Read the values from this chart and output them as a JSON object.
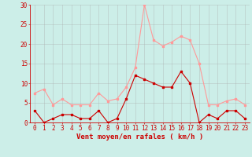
{
  "hours": [
    0,
    1,
    2,
    3,
    4,
    5,
    6,
    7,
    8,
    9,
    10,
    11,
    12,
    13,
    14,
    15,
    16,
    17,
    18,
    19,
    20,
    21,
    22,
    23
  ],
  "wind_avg": [
    3,
    0,
    1,
    2,
    2,
    1,
    1,
    3,
    0,
    1,
    6,
    12,
    11,
    10,
    9,
    9,
    13,
    10,
    0,
    2,
    1,
    3,
    3,
    1
  ],
  "wind_gust": [
    7.5,
    8.5,
    4.5,
    6,
    4.5,
    4.5,
    4.5,
    7.5,
    5.5,
    6,
    9,
    14,
    30,
    21,
    19.5,
    20.5,
    22,
    21,
    15,
    4.5,
    4.5,
    5.5,
    6,
    4.5
  ],
  "color_avg": "#cc0000",
  "color_gust": "#ff9999",
  "bg_color": "#cceee8",
  "grid_color": "#aaaaaa",
  "axis_color": "#cc0000",
  "xlabel": "Vent moyen/en rafales ( km/h )",
  "ylim": [
    0,
    30
  ],
  "yticks": [
    0,
    5,
    10,
    15,
    20,
    25,
    30
  ],
  "tick_fontsize": 5.5,
  "label_fontsize": 6.5
}
